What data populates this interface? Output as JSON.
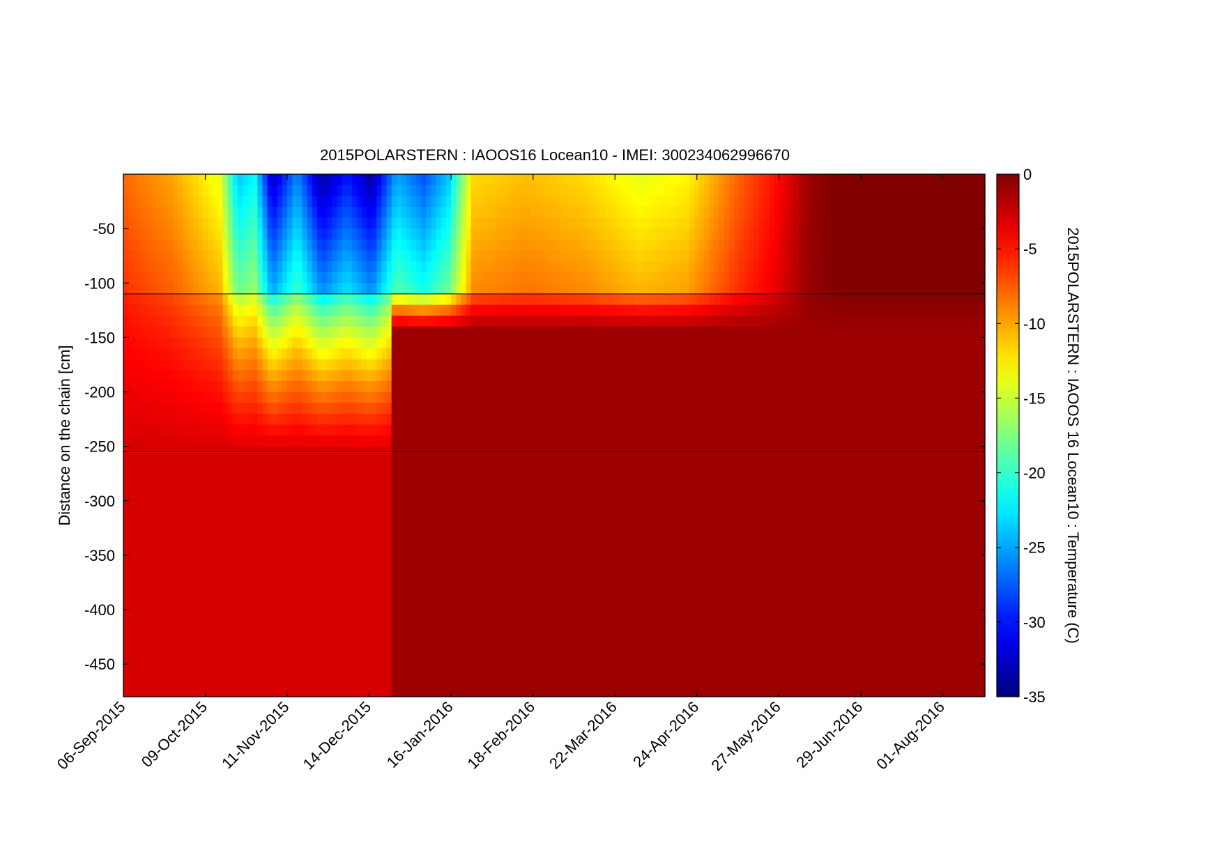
{
  "chart_data": {
    "type": "heatmap",
    "title": "2015POLARSTERN : IAOOS16  Locean10 - IMEI: 300234062996670",
    "xlabel": "",
    "ylabel": "Distance on the chain [cm]",
    "colorbar_label": "2015POLARSTERN : IAOOS 16  Locean10 : Temperature (C)",
    "colormap": "jet",
    "x_range": [
      "2015-09-06",
      "2016-08-18"
    ],
    "x_ticks": [
      "06-Sep-2015",
      "09-Oct-2015",
      "11-Nov-2015",
      "14-Dec-2015",
      "16-Jan-2016",
      "18-Feb-2016",
      "22-Mar-2016",
      "24-Apr-2016",
      "27-May-2016",
      "29-Jun-2016",
      "01-Aug-2016"
    ],
    "x_tick_dates": [
      "2015-09-06",
      "2015-10-09",
      "2015-11-11",
      "2015-12-14",
      "2016-01-16",
      "2016-02-18",
      "2016-03-22",
      "2016-04-24",
      "2016-05-27",
      "2016-06-29",
      "2016-08-01"
    ],
    "ylim": [
      -480,
      0
    ],
    "y_ticks": [
      -50,
      -100,
      -150,
      -200,
      -250,
      -300,
      -350,
      -400,
      -450
    ],
    "clim": [
      -35,
      0
    ],
    "colorbar_ticks": [
      0,
      -5,
      -10,
      -15,
      -20,
      -25,
      -30,
      -35
    ],
    "reference_lines_y": [
      -110,
      -255
    ],
    "grid": false,
    "regions": {
      "air_bottom": -110,
      "ice_bottom_initial": -255,
      "ocean_shift_date": "2015-12-24",
      "ice_bottom_after_shift": -145
    },
    "air_temperature_series": [
      {
        "date": "2015-09-06",
        "temp": -8
      },
      {
        "date": "2015-09-15",
        "temp": -9
      },
      {
        "date": "2015-09-25",
        "temp": -10
      },
      {
        "date": "2015-10-05",
        "temp": -12
      },
      {
        "date": "2015-10-15",
        "temp": -14
      },
      {
        "date": "2015-10-22",
        "temp": -24
      },
      {
        "date": "2015-10-29",
        "temp": -22
      },
      {
        "date": "2015-11-05",
        "temp": -33
      },
      {
        "date": "2015-11-15",
        "temp": -26
      },
      {
        "date": "2015-11-25",
        "temp": -34
      },
      {
        "date": "2015-12-05",
        "temp": -30
      },
      {
        "date": "2015-12-15",
        "temp": -34
      },
      {
        "date": "2015-12-25",
        "temp": -25
      },
      {
        "date": "2016-01-05",
        "temp": -28
      },
      {
        "date": "2016-01-15",
        "temp": -24
      },
      {
        "date": "2016-01-25",
        "temp": -12
      },
      {
        "date": "2016-02-15",
        "temp": -11
      },
      {
        "date": "2016-03-10",
        "temp": -12
      },
      {
        "date": "2016-04-01",
        "temp": -14
      },
      {
        "date": "2016-04-20",
        "temp": -13
      },
      {
        "date": "2016-05-10",
        "temp": -8
      },
      {
        "date": "2016-05-25",
        "temp": -5
      },
      {
        "date": "2016-06-08",
        "temp": -1
      },
      {
        "date": "2016-06-20",
        "temp": 0
      },
      {
        "date": "2016-08-18",
        "temp": 0
      }
    ],
    "ocean_temperature": {
      "before_shift": -3,
      "after_shift": -1
    }
  }
}
